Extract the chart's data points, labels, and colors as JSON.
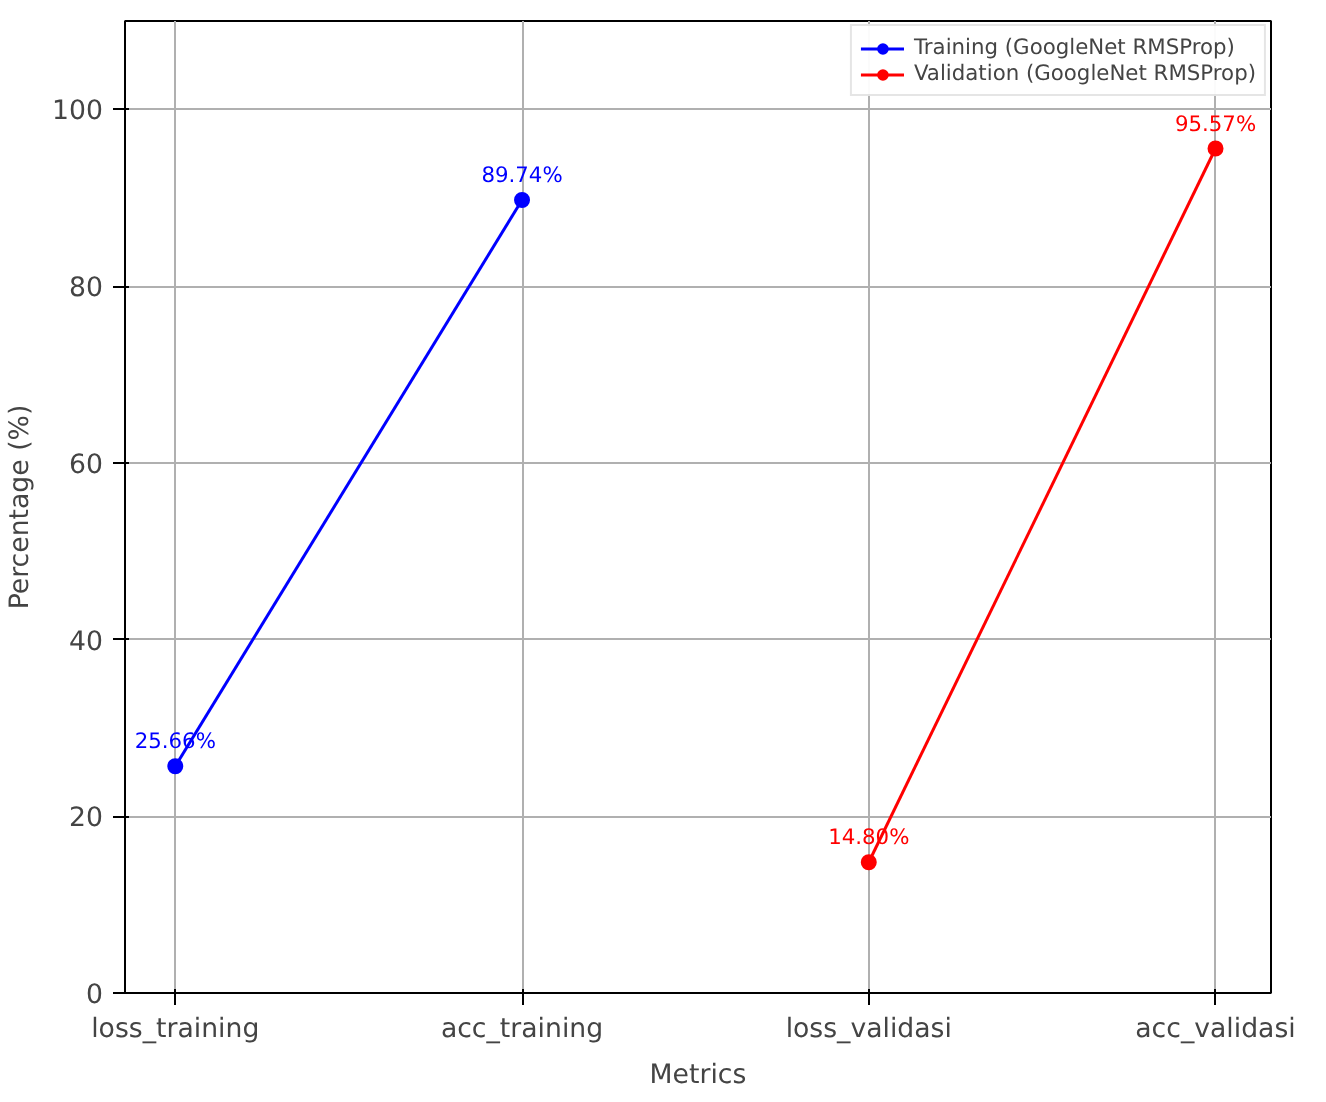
{
  "chart_data": {
    "type": "line",
    "xlabel": "Metrics",
    "ylabel": "Percentage (%)",
    "categories": [
      "loss_training",
      "acc_training",
      "loss_validasi",
      "acc_validasi"
    ],
    "series": [
      {
        "name": "Training (GoogleNet RMSProp)",
        "color": "#0000ff",
        "values": [
          25.66,
          89.74,
          null,
          null
        ],
        "value_labels": [
          "25.66%",
          "89.74%",
          null,
          null
        ]
      },
      {
        "name": "Validation (GoogleNet RMSProp)",
        "color": "#ff0000",
        "values": [
          null,
          null,
          14.8,
          95.57
        ],
        "value_labels": [
          null,
          null,
          "14.80%",
          "95.57%"
        ]
      }
    ],
    "ylim": [
      0,
      110
    ],
    "yticks": [
      0,
      20,
      40,
      60,
      80,
      100
    ],
    "grid": true,
    "legend": "top right",
    "marker": "circle",
    "line_style": "solid"
  }
}
